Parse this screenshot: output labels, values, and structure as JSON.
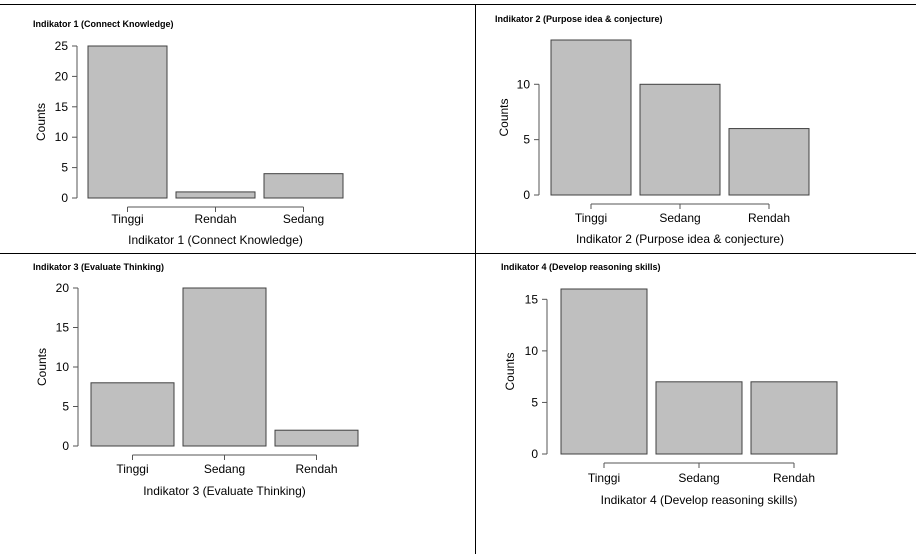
{
  "style": {
    "bar_fill": "#bfbfbf",
    "bar_stroke": "#404040",
    "axis_color": "#555555"
  },
  "chart_data": [
    {
      "type": "bar",
      "title": "Indikator 1 (Connect Knowledge)",
      "xlabel": "Indikator 1 (Connect Knowledge)",
      "ylabel": "Counts",
      "categories": [
        "Tinggi",
        "Rendah",
        "Sedang"
      ],
      "values": [
        25,
        1,
        4
      ],
      "ylim": [
        0,
        25
      ],
      "yticks": [
        0,
        5,
        10,
        15,
        20,
        25
      ],
      "grid": false,
      "legend": "none"
    },
    {
      "type": "bar",
      "title": "Indikator 2 (Purpose idea & conjecture)",
      "xlabel": "Indikator 2 (Purpose idea & conjecture)",
      "ylabel": "Counts",
      "categories": [
        "Tinggi",
        "Sedang",
        "Rendah"
      ],
      "values": [
        14,
        10,
        6
      ],
      "ylim": [
        0,
        14
      ],
      "yticks": [
        0,
        5,
        10
      ],
      "grid": false,
      "legend": "none"
    },
    {
      "type": "bar",
      "title": "Indikator 3 (Evaluate Thinking)",
      "xlabel": "Indikator 3 (Evaluate Thinking)",
      "ylabel": "Counts",
      "categories": [
        "Tinggi",
        "Sedang",
        "Rendah"
      ],
      "values": [
        8,
        20,
        2
      ],
      "ylim": [
        0,
        20
      ],
      "yticks": [
        0,
        5,
        10,
        15,
        20
      ],
      "grid": false,
      "legend": "none"
    },
    {
      "type": "bar",
      "title": "Indikator 4 (Develop reasoning skills)",
      "xlabel": "Indikator 4 (Develop reasoning skills)",
      "ylabel": "Counts",
      "categories": [
        "Tinggi",
        "Sedang",
        "Rendah"
      ],
      "values": [
        16,
        7,
        7
      ],
      "ylim": [
        0,
        16
      ],
      "yticks": [
        0,
        5,
        10,
        15
      ],
      "grid": false,
      "legend": "none"
    }
  ]
}
